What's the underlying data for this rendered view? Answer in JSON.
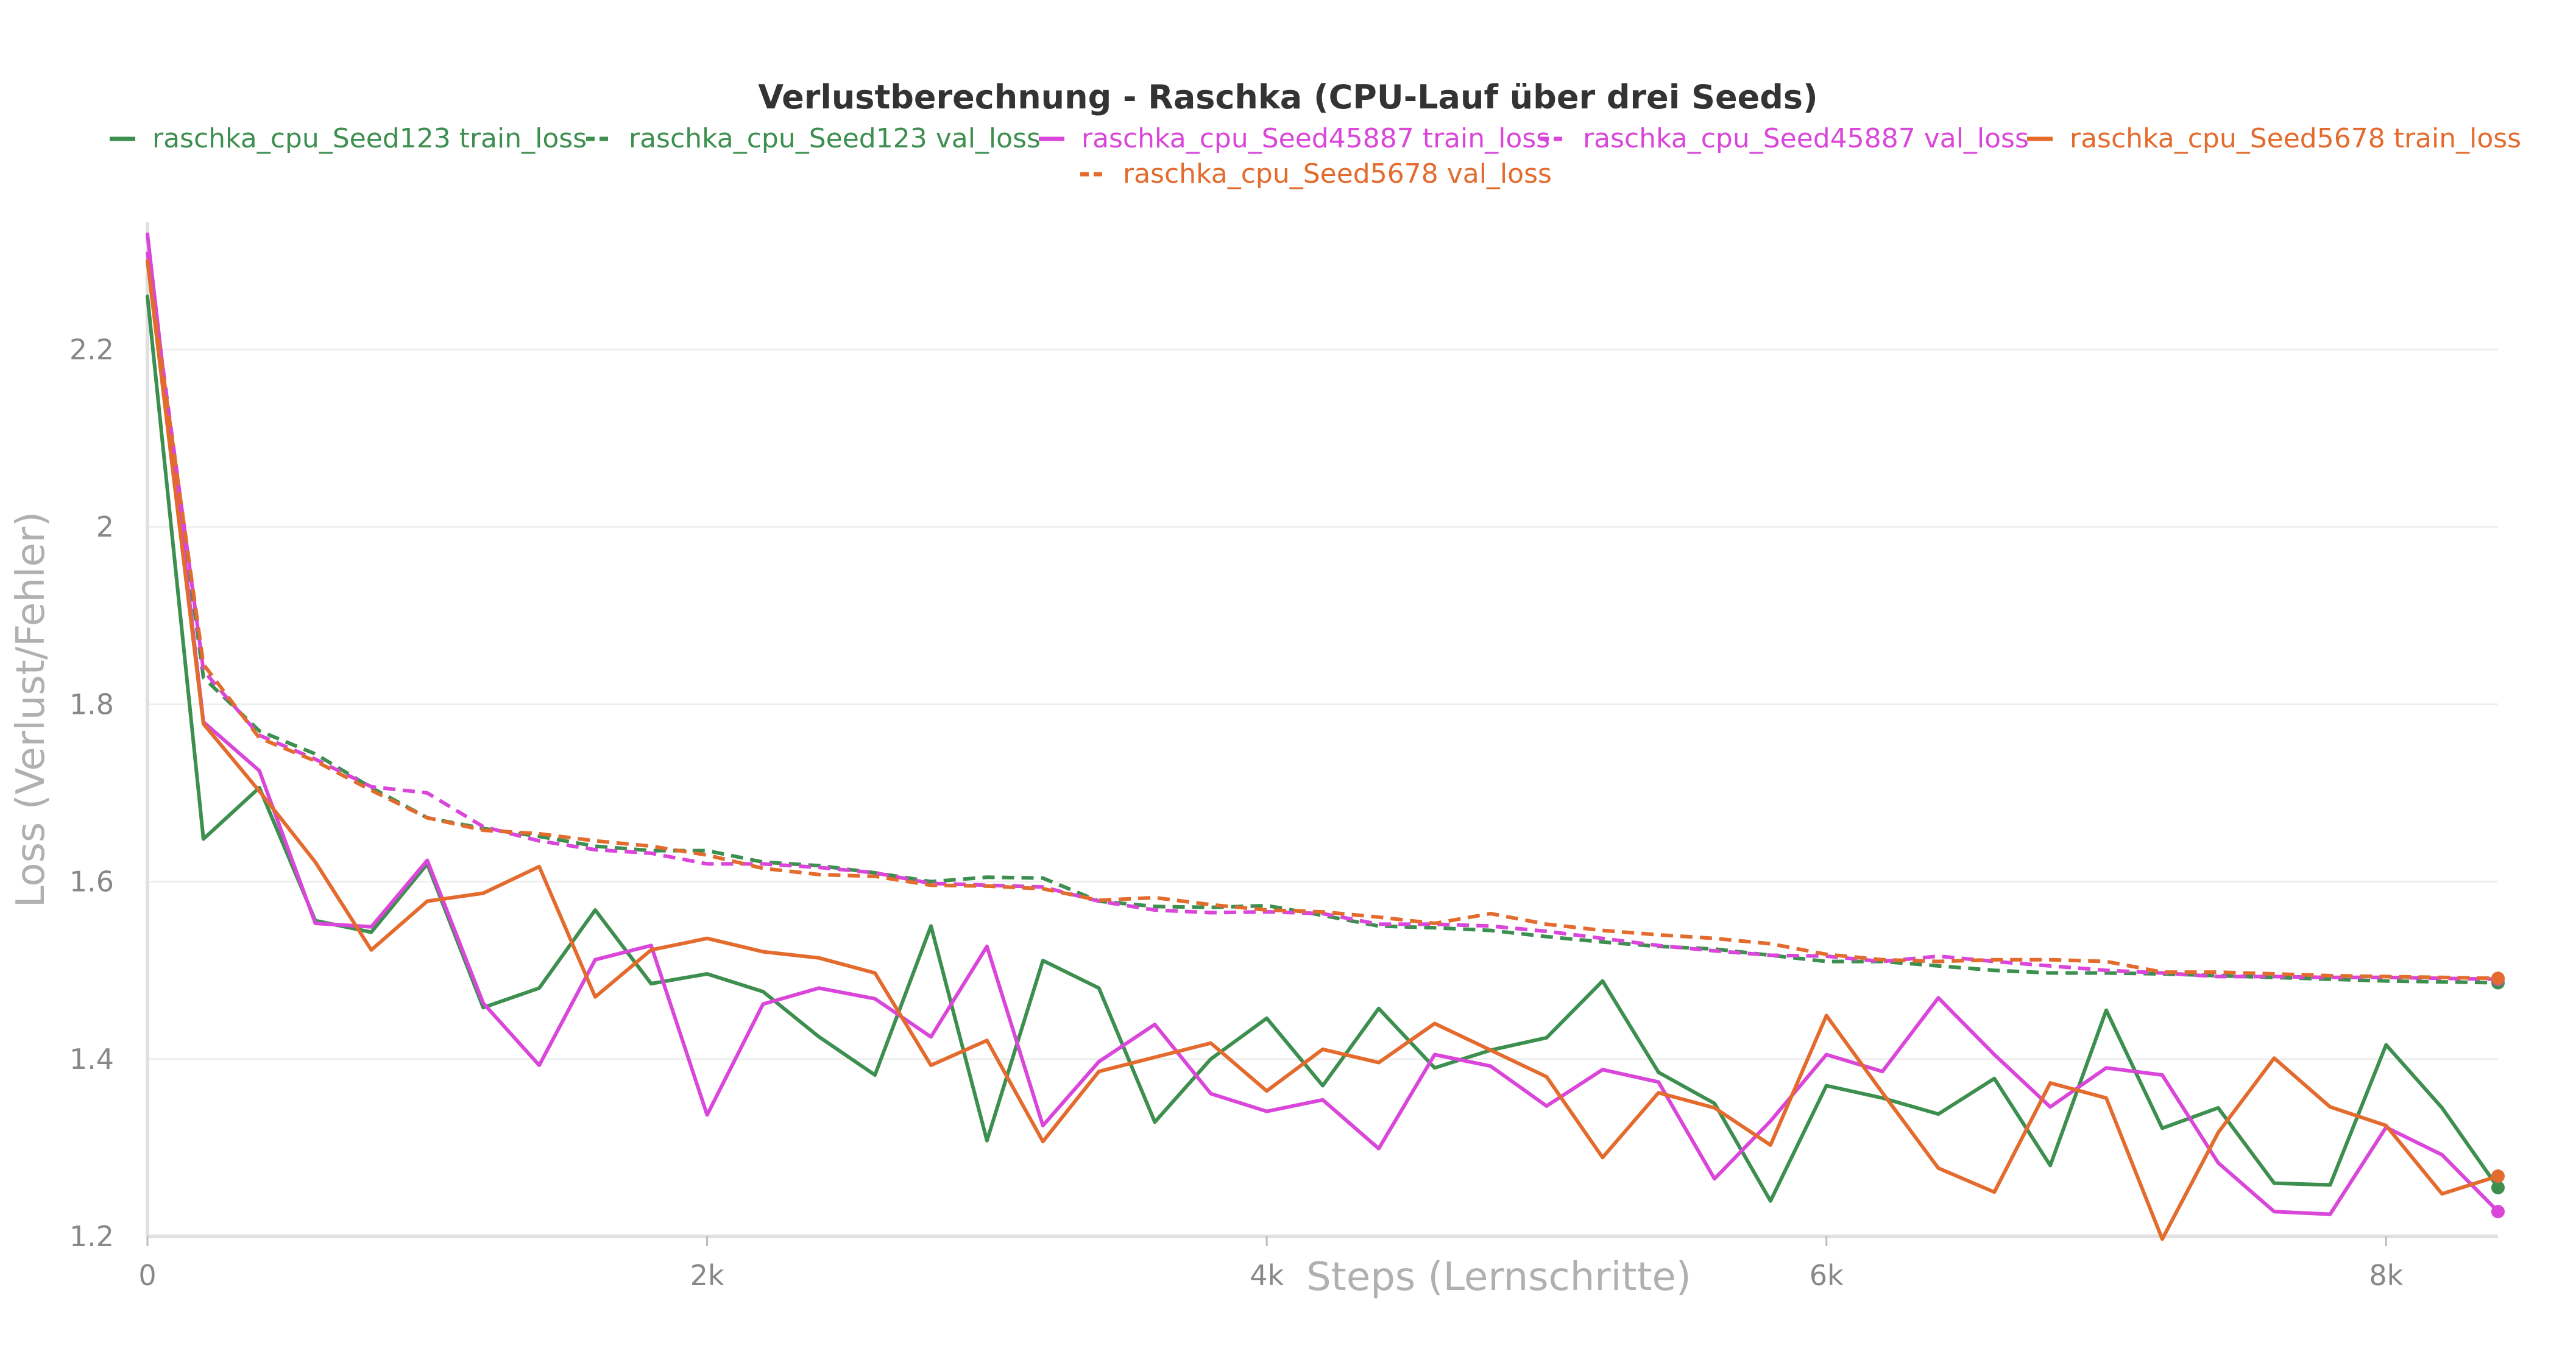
{
  "chart_data": {
    "type": "line",
    "title": "Verlustberechnung - Raschka (CPU-Lauf über drei Seeds)",
    "xlabel": "Steps (Lernschritte)",
    "ylabel": "Loss (Verlust/Fehler)",
    "xlim": [
      0,
      8400
    ],
    "ylim": [
      1.2,
      2.34
    ],
    "x_ticks": [
      0,
      2000,
      4000,
      6000,
      8000
    ],
    "x_tick_labels": [
      "0",
      "2k",
      "4k",
      "6k",
      "8k"
    ],
    "y_ticks": [
      1.2,
      1.4,
      1.6,
      1.8,
      2.0,
      2.2
    ],
    "y_tick_labels": [
      "1.2",
      "1.4",
      "1.6",
      "1.8",
      "2",
      "2.2"
    ],
    "grid": true,
    "legend_position": "top",
    "x": [
      0,
      200,
      400,
      600,
      800,
      1000,
      1200,
      1400,
      1600,
      1800,
      2000,
      2200,
      2400,
      2600,
      2800,
      3000,
      3200,
      3400,
      3600,
      3800,
      4000,
      4200,
      4400,
      4600,
      4800,
      5000,
      5200,
      5400,
      5600,
      5800,
      6000,
      6200,
      6400,
      6600,
      6800,
      7000,
      7200,
      7400,
      7600,
      7800,
      8000,
      8200,
      8400
    ],
    "series": [
      {
        "name": "raschka_cpu_Seed123 train_loss",
        "color": "#3d8f4f",
        "dash": "solid",
        "values": [
          2.26,
          1.648,
          1.706,
          1.556,
          1.543,
          1.62,
          1.458,
          1.48,
          1.568,
          1.485,
          1.496,
          1.476,
          1.425,
          1.382,
          1.55,
          1.308,
          1.511,
          1.48,
          1.329,
          1.4,
          1.446,
          1.37,
          1.457,
          1.39,
          1.41,
          1.424,
          1.488,
          1.385,
          1.35,
          1.24,
          1.37,
          1.356,
          1.338,
          1.378,
          1.28,
          1.455,
          1.322,
          1.345,
          1.26,
          1.258,
          1.416,
          1.345,
          1.255
        ]
      },
      {
        "name": "raschka_cpu_Seed123 val_loss",
        "color": "#3d8f4f",
        "dash": "dashed",
        "values": [
          2.3,
          1.83,
          1.77,
          1.744,
          1.706,
          1.672,
          1.66,
          1.651,
          1.64,
          1.635,
          1.635,
          1.622,
          1.618,
          1.61,
          1.6,
          1.605,
          1.604,
          1.578,
          1.572,
          1.571,
          1.573,
          1.562,
          1.55,
          1.548,
          1.545,
          1.538,
          1.532,
          1.527,
          1.524,
          1.517,
          1.51,
          1.51,
          1.505,
          1.5,
          1.497,
          1.497,
          1.496,
          1.494,
          1.492,
          1.49,
          1.488,
          1.487,
          1.486
        ]
      },
      {
        "name": "raschka_cpu_Seed45887 train_loss",
        "color": "#d946d9",
        "dash": "solid",
        "values": [
          2.33,
          1.78,
          1.725,
          1.553,
          1.549,
          1.624,
          1.463,
          1.393,
          1.512,
          1.528,
          1.337,
          1.462,
          1.48,
          1.468,
          1.425,
          1.527,
          1.325,
          1.397,
          1.439,
          1.361,
          1.341,
          1.354,
          1.299,
          1.405,
          1.392,
          1.347,
          1.388,
          1.374,
          1.265,
          1.33,
          1.405,
          1.386,
          1.469,
          1.405,
          1.346,
          1.39,
          1.382,
          1.283,
          1.228,
          1.225,
          1.323,
          1.292,
          1.228
        ]
      },
      {
        "name": "raschka_cpu_Seed45887 val_loss",
        "color": "#d946d9",
        "dash": "dashed",
        "values": [
          2.31,
          1.838,
          1.765,
          1.738,
          1.707,
          1.7,
          1.662,
          1.646,
          1.636,
          1.632,
          1.62,
          1.62,
          1.616,
          1.61,
          1.598,
          1.596,
          1.594,
          1.578,
          1.568,
          1.565,
          1.566,
          1.564,
          1.552,
          1.552,
          1.55,
          1.544,
          1.536,
          1.528,
          1.522,
          1.517,
          1.516,
          1.51,
          1.516,
          1.51,
          1.505,
          1.5,
          1.497,
          1.493,
          1.493,
          1.492,
          1.492,
          1.491,
          1.49
        ]
      },
      {
        "name": "raschka_cpu_Seed5678 train_loss",
        "color": "#e36b2e",
        "dash": "solid",
        "values": [
          2.3,
          1.778,
          1.702,
          1.622,
          1.523,
          1.578,
          1.587,
          1.617,
          1.47,
          1.523,
          1.536,
          1.521,
          1.514,
          1.497,
          1.393,
          1.421,
          1.307,
          1.386,
          1.402,
          1.418,
          1.364,
          1.411,
          1.396,
          1.44,
          1.41,
          1.38,
          1.289,
          1.362,
          1.345,
          1.303,
          1.449,
          1.362,
          1.277,
          1.25,
          1.373,
          1.356,
          1.197,
          1.317,
          1.401,
          1.346,
          1.325,
          1.248,
          1.268
        ]
      },
      {
        "name": "raschka_cpu_Seed5678 val_loss",
        "color": "#e36b2e",
        "dash": "dashed",
        "values": [
          2.3,
          1.845,
          1.762,
          1.736,
          1.703,
          1.672,
          1.658,
          1.654,
          1.646,
          1.64,
          1.63,
          1.615,
          1.608,
          1.606,
          1.596,
          1.595,
          1.592,
          1.579,
          1.582,
          1.574,
          1.568,
          1.566,
          1.56,
          1.553,
          1.564,
          1.552,
          1.545,
          1.54,
          1.536,
          1.53,
          1.518,
          1.512,
          1.51,
          1.512,
          1.512,
          1.51,
          1.498,
          1.498,
          1.496,
          1.494,
          1.493,
          1.492,
          1.491
        ]
      }
    ]
  }
}
